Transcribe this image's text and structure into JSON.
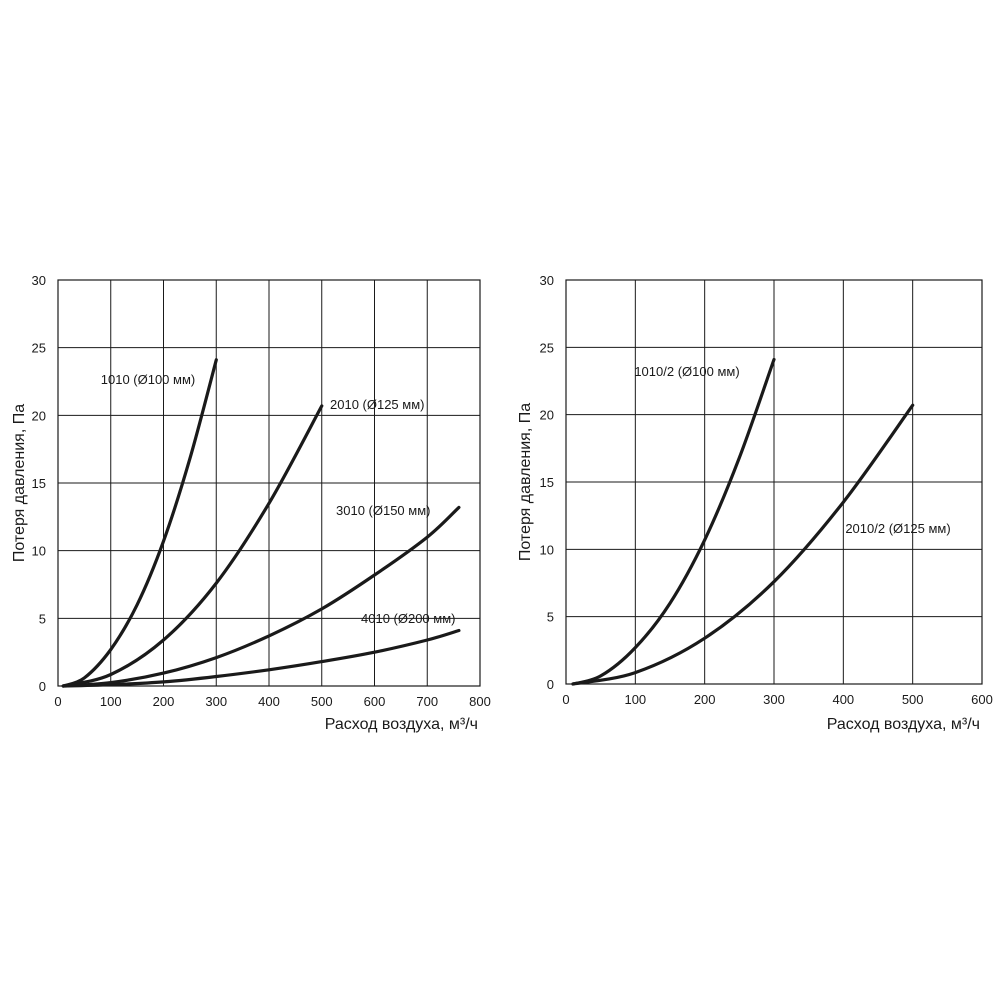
{
  "chart_data": [
    {
      "type": "line",
      "title": "",
      "xlabel": "Расход воздуха, м³/ч",
      "ylabel": "Потеря давления, Па",
      "xlim": [
        0,
        800
      ],
      "ylim": [
        0,
        30
      ],
      "xticks": [
        "0",
        "100",
        "200",
        "300",
        "400",
        "500",
        "600",
        "700",
        "800"
      ],
      "yticks": [
        "0",
        "5",
        "10",
        "15",
        "20",
        "25",
        "30"
      ],
      "grid": true,
      "series": [
        {
          "name": "1010 (Ø100 мм)",
          "x": [
            10,
            50,
            100,
            150,
            200,
            250,
            300
          ],
          "y": [
            0,
            0.6,
            2.7,
            6.0,
            10.7,
            16.8,
            24.1
          ]
        },
        {
          "name": "2010 (Ø125 мм)",
          "x": [
            10,
            100,
            200,
            300,
            400,
            500
          ],
          "y": [
            0,
            0.85,
            3.4,
            7.6,
            13.5,
            20.7
          ]
        },
        {
          "name": "3010 (Ø150 мм)",
          "x": [
            10,
            100,
            200,
            300,
            400,
            500,
            600,
            700,
            760
          ],
          "y": [
            0,
            0.25,
            0.95,
            2.1,
            3.7,
            5.7,
            8.2,
            11.0,
            13.2
          ]
        },
        {
          "name": "4010 (Ø200 мм)",
          "x": [
            10,
            100,
            200,
            300,
            400,
            500,
            600,
            700,
            760
          ],
          "y": [
            0,
            0.1,
            0.3,
            0.7,
            1.2,
            1.8,
            2.5,
            3.4,
            4.1
          ]
        }
      ]
    },
    {
      "type": "line",
      "title": "",
      "xlabel": "Расход воздуха, м³/ч",
      "ylabel": "Потеря давления, Па",
      "xlim": [
        0,
        600
      ],
      "ylim": [
        0,
        30
      ],
      "xticks": [
        "0",
        "100",
        "200",
        "300",
        "400",
        "500",
        "600"
      ],
      "yticks": [
        "0",
        "5",
        "10",
        "15",
        "20",
        "25",
        "30"
      ],
      "grid": true,
      "series": [
        {
          "name": "1010/2 (Ø100 мм)",
          "x": [
            10,
            50,
            100,
            150,
            200,
            250,
            300
          ],
          "y": [
            0,
            0.6,
            2.7,
            6.0,
            10.7,
            16.8,
            24.1
          ]
        },
        {
          "name": "2010/2 (Ø125 мм)",
          "x": [
            10,
            100,
            200,
            300,
            400,
            500
          ],
          "y": [
            0,
            0.85,
            3.4,
            7.6,
            13.5,
            20.7
          ]
        }
      ]
    }
  ]
}
